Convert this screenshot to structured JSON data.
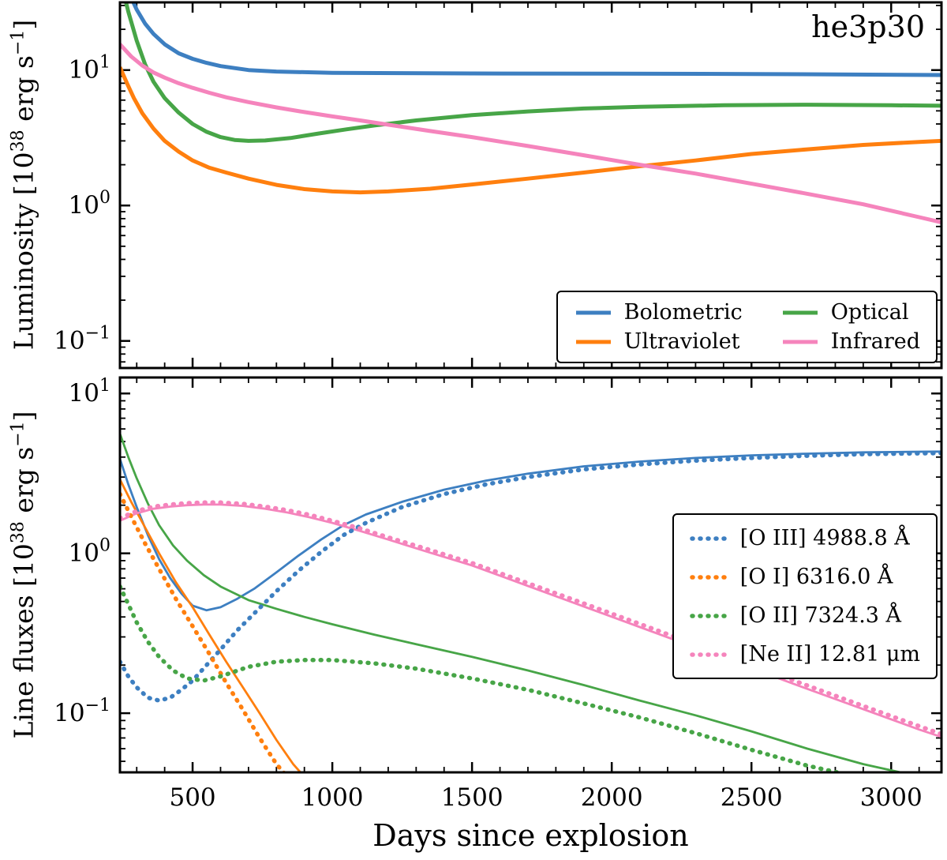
{
  "title": "he3p30",
  "xlabel": "Days since explosion",
  "colors": {
    "blue": "#3d7fc1",
    "orange": "#ff7f0e",
    "green": "#47a547",
    "pink": "#f584bc",
    "axis": "#000000",
    "background": "#ffffff"
  },
  "chart_data": [
    {
      "type": "line",
      "panel": "top",
      "ylabel": {
        "pre": "Luminosity [10",
        "exp": "38",
        "mid": " erg s",
        "exp2": "−1",
        "post": "]"
      },
      "xlim": [
        240,
        3180
      ],
      "ylog_lim": [
        -1.2,
        1.5
      ],
      "xticks": [
        500,
        1000,
        1500,
        2000,
        2500,
        3000
      ],
      "x_minor_step": 100,
      "ytick_exponents": [
        1,
        0,
        -1
      ],
      "grid": false,
      "legend_position": "lower right",
      "legend_columns": 2,
      "legend_order": [
        "bolometric",
        "optical",
        "ultraviolet",
        "infrared"
      ],
      "series": [
        {
          "id": "bolometric",
          "name": "Bolometric",
          "color": "#3d7fc1",
          "style": "solid",
          "width": 5,
          "x": [
            240,
            270,
            300,
            330,
            360,
            400,
            450,
            500,
            550,
            600,
            700,
            800,
            900,
            1000,
            1250,
            1500,
            2000,
            2500,
            3180
          ],
          "y": [
            55,
            38,
            28,
            22,
            18.5,
            15.5,
            13.3,
            12.1,
            11.3,
            10.7,
            10.0,
            9.75,
            9.65,
            9.55,
            9.5,
            9.45,
            9.4,
            9.35,
            9.2
          ]
        },
        {
          "id": "ultraviolet",
          "name": "Ultraviolet",
          "color": "#ff7f0e",
          "style": "solid",
          "width": 5,
          "x": [
            240,
            265,
            290,
            320,
            360,
            400,
            450,
            500,
            560,
            620,
            700,
            800,
            900,
            1000,
            1100,
            1200,
            1350,
            1500,
            1700,
            1900,
            2100,
            2300,
            2500,
            2700,
            2900,
            3100,
            3180
          ],
          "y": [
            10.5,
            8.0,
            6.2,
            4.8,
            3.7,
            3.0,
            2.5,
            2.15,
            1.9,
            1.75,
            1.58,
            1.42,
            1.32,
            1.27,
            1.25,
            1.27,
            1.33,
            1.43,
            1.58,
            1.75,
            1.95,
            2.15,
            2.4,
            2.6,
            2.8,
            2.95,
            3.0
          ]
        },
        {
          "id": "optical",
          "name": "Optical",
          "color": "#47a547",
          "style": "solid",
          "width": 5,
          "x": [
            240,
            270,
            300,
            330,
            360,
            400,
            450,
            500,
            550,
            600,
            650,
            700,
            760,
            850,
            950,
            1050,
            1150,
            1300,
            1500,
            1700,
            1900,
            2100,
            2400,
            2700,
            3000,
            3180
          ],
          "y": [
            48,
            27,
            16.5,
            11,
            8.2,
            6.2,
            4.85,
            4.0,
            3.5,
            3.2,
            3.05,
            3.0,
            3.02,
            3.15,
            3.4,
            3.65,
            3.9,
            4.25,
            4.65,
            4.95,
            5.2,
            5.35,
            5.5,
            5.55,
            5.5,
            5.45
          ]
        },
        {
          "id": "infrared",
          "name": "Infrared",
          "color": "#f584bc",
          "style": "solid",
          "width": 5,
          "x": [
            240,
            280,
            320,
            360,
            400,
            450,
            500,
            560,
            620,
            700,
            800,
            900,
            1000,
            1100,
            1200,
            1350,
            1500,
            1700,
            1900,
            2100,
            2300,
            2500,
            2700,
            2900,
            3100,
            3180
          ],
          "y": [
            15.5,
            12.6,
            10.8,
            9.6,
            8.8,
            8.0,
            7.4,
            6.8,
            6.3,
            5.8,
            5.3,
            4.9,
            4.55,
            4.25,
            3.95,
            3.55,
            3.2,
            2.75,
            2.35,
            2.0,
            1.72,
            1.45,
            1.22,
            1.02,
            0.82,
            0.75
          ]
        }
      ]
    },
    {
      "type": "line",
      "panel": "bottom",
      "ylabel": {
        "pre": "Line fluxes [10",
        "exp": "38",
        "mid": " erg s",
        "exp2": "−1",
        "post": "]"
      },
      "xlim": [
        240,
        3180
      ],
      "ylog_lim": [
        -1.37,
        1.1
      ],
      "xticks": [
        500,
        1000,
        1500,
        2000,
        2500,
        3000
      ],
      "x_minor_step": 100,
      "ytick_exponents": [
        1,
        0,
        -1
      ],
      "grid": false,
      "legend_position": "center right",
      "legend_columns": 1,
      "legend_order": [
        "oiii-dashed",
        "oi-dashed",
        "oii-dashed",
        "neii-dashed"
      ],
      "series": [
        {
          "id": "oiii-solid",
          "name": "",
          "color": "#3d7fc1",
          "style": "solid",
          "width": 2.8,
          "x": [
            240,
            270,
            300,
            340,
            380,
            420,
            460,
            500,
            550,
            600,
            660,
            720,
            800,
            880,
            960,
            1040,
            1120,
            1250,
            1400,
            1550,
            1700,
            1900,
            2100,
            2300,
            2500,
            2700,
            2900,
            3100,
            3180
          ],
          "y": [
            3.9,
            2.7,
            1.95,
            1.3,
            0.92,
            0.7,
            0.56,
            0.47,
            0.44,
            0.46,
            0.52,
            0.6,
            0.76,
            0.97,
            1.22,
            1.5,
            1.75,
            2.1,
            2.5,
            2.85,
            3.15,
            3.5,
            3.75,
            3.95,
            4.1,
            4.2,
            4.28,
            4.32,
            4.33
          ]
        },
        {
          "id": "oi-solid",
          "name": "",
          "color": "#ff7f0e",
          "style": "solid",
          "width": 2.8,
          "x": [
            240,
            280,
            330,
            380,
            440,
            500,
            560,
            620,
            680,
            740,
            800,
            860,
            900
          ],
          "y": [
            2.9,
            2.1,
            1.45,
            1.0,
            0.66,
            0.46,
            0.31,
            0.21,
            0.145,
            0.1,
            0.068,
            0.048,
            0.04
          ]
        },
        {
          "id": "oii-solid",
          "name": "",
          "color": "#47a547",
          "style": "solid",
          "width": 2.8,
          "x": [
            240,
            270,
            300,
            340,
            380,
            430,
            480,
            540,
            600,
            700,
            800,
            900,
            1000,
            1150,
            1300,
            1500,
            1700,
            1900,
            2100,
            2300,
            2500,
            2700,
            2900,
            3050,
            3120
          ],
          "y": [
            5.6,
            4.0,
            2.95,
            2.05,
            1.5,
            1.12,
            0.9,
            0.73,
            0.62,
            0.51,
            0.45,
            0.4,
            0.36,
            0.31,
            0.27,
            0.225,
            0.185,
            0.15,
            0.12,
            0.097,
            0.077,
            0.06,
            0.048,
            0.042,
            0.04
          ]
        },
        {
          "id": "neii-solid",
          "name": "",
          "color": "#f584bc",
          "style": "solid",
          "width": 2.8,
          "x": [
            240,
            300,
            360,
            420,
            480,
            540,
            600,
            680,
            760,
            840,
            920,
            1000,
            1100,
            1200,
            1350,
            1500,
            1700,
            1900,
            2100,
            2300,
            2500,
            2700,
            2900,
            3100,
            3180
          ],
          "y": [
            1.6,
            1.78,
            1.9,
            1.96,
            2.0,
            2.02,
            2.02,
            1.98,
            1.9,
            1.8,
            1.68,
            1.55,
            1.38,
            1.22,
            1.01,
            0.84,
            0.625,
            0.465,
            0.346,
            0.257,
            0.191,
            0.142,
            0.106,
            0.079,
            0.071
          ]
        },
        {
          "id": "oiii-dashed",
          "name": "[O III] 4988.8 Å",
          "color": "#3d7fc1",
          "style": "dashed",
          "width": 5.5,
          "x": [
            240,
            270,
            300,
            340,
            380,
            420,
            460,
            500,
            550,
            600,
            660,
            720,
            800,
            880,
            960,
            1040,
            1120,
            1250,
            1400,
            1550,
            1700,
            1900,
            2100,
            2300,
            2500,
            2700,
            2900,
            3100,
            3180
          ],
          "y": [
            0.21,
            0.17,
            0.145,
            0.125,
            0.12,
            0.125,
            0.14,
            0.16,
            0.2,
            0.25,
            0.33,
            0.42,
            0.58,
            0.78,
            1.02,
            1.3,
            1.55,
            1.95,
            2.35,
            2.7,
            3.0,
            3.35,
            3.6,
            3.8,
            3.95,
            4.08,
            4.17,
            4.22,
            4.24
          ]
        },
        {
          "id": "oi-dashed",
          "name": "[O I] 6316.0 Å",
          "color": "#ff7f0e",
          "style": "dashed",
          "width": 5.5,
          "x": [
            240,
            280,
            330,
            380,
            440,
            500,
            560,
            620,
            680,
            740,
            800,
            850
          ],
          "y": [
            2.35,
            1.7,
            1.15,
            0.8,
            0.52,
            0.35,
            0.235,
            0.155,
            0.105,
            0.07,
            0.048,
            0.038
          ]
        },
        {
          "id": "oii-dashed",
          "name": "[O II] 7324.3 Å",
          "color": "#47a547",
          "style": "dashed",
          "width": 5.5,
          "x": [
            240,
            270,
            300,
            340,
            380,
            430,
            480,
            540,
            600,
            700,
            800,
            900,
            1000,
            1150,
            1300,
            1500,
            1700,
            1900,
            2100,
            2300,
            2500,
            2700,
            2850,
            2950
          ],
          "y": [
            0.62,
            0.48,
            0.37,
            0.28,
            0.225,
            0.185,
            0.165,
            0.16,
            0.17,
            0.195,
            0.21,
            0.215,
            0.215,
            0.205,
            0.19,
            0.165,
            0.14,
            0.115,
            0.094,
            0.075,
            0.059,
            0.047,
            0.041,
            0.037
          ]
        },
        {
          "id": "neii-dashed",
          "name": "[Ne II] 12.81 μm",
          "color": "#f584bc",
          "style": "dashed",
          "width": 5.5,
          "x": [
            240,
            300,
            360,
            420,
            480,
            540,
            600,
            680,
            760,
            840,
            920,
            1000,
            1100,
            1200,
            1350,
            1500,
            1700,
            1900,
            2100,
            2300,
            2500,
            2700,
            2900,
            3100,
            3180
          ],
          "y": [
            1.66,
            1.84,
            1.96,
            2.02,
            2.06,
            2.08,
            2.08,
            2.04,
            1.96,
            1.86,
            1.74,
            1.6,
            1.43,
            1.26,
            1.05,
            0.87,
            0.65,
            0.486,
            0.362,
            0.269,
            0.2,
            0.149,
            0.111,
            0.083,
            0.074
          ]
        }
      ]
    }
  ]
}
